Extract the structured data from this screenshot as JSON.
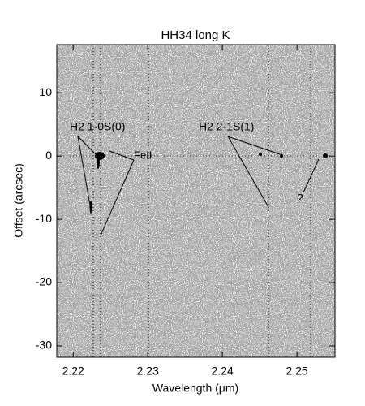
{
  "chart_data": {
    "type": "image",
    "title": "HH34 long K",
    "x_label": "Wavelength (μm)",
    "y_label": "Offset (arcsec)",
    "xlim": [
      2.2178,
      2.2551
    ],
    "ylim": [
      -31.8,
      17.6
    ],
    "xticks": [
      2.22,
      2.23,
      2.24,
      2.25
    ],
    "yticks": [
      -30,
      -20,
      -10,
      0,
      10
    ],
    "annotations": [
      "H2 1-0S(0)",
      "FeII",
      "H2 2-1S(1)",
      "?"
    ]
  }
}
